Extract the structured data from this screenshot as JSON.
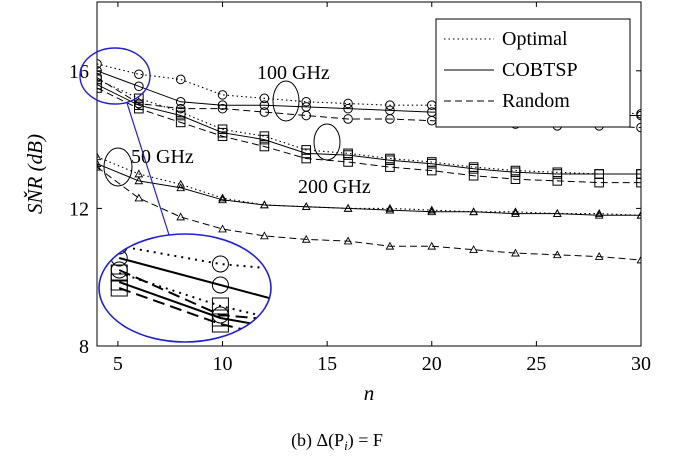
{
  "chart_data": {
    "type": "line",
    "caption": "(b) Δ(P",
    "caption_sub": "i",
    "caption_tail": ") = F",
    "xlabel": "n",
    "ylabel": "SŇR (dB)",
    "xlim": [
      4,
      30
    ],
    "ylim": [
      8,
      18
    ],
    "xticks": [
      5,
      10,
      15,
      20,
      25,
      30
    ],
    "yticks": [
      8,
      12,
      16
    ],
    "grid": false,
    "legend_position": "top-right",
    "legend": [
      {
        "label": "Optimal",
        "dash": "dotted"
      },
      {
        "label": "COBTSP",
        "dash": "solid"
      },
      {
        "label": "Random",
        "dash": "dashed"
      }
    ],
    "annotations": [
      {
        "text": "100 GHz",
        "x": 13.5,
        "y": 16.0
      },
      {
        "text": "50 GHz",
        "x": 6.1,
        "y": 13.4
      },
      {
        "text": "200 GHz",
        "x": 18.7,
        "y": 12.5
      }
    ],
    "series": [
      {
        "group": "100 GHz",
        "style": "dotted",
        "marker": "circle",
        "x": [
          4,
          6,
          8,
          10,
          12,
          14,
          16,
          18,
          20,
          22,
          24,
          26,
          28,
          30
        ],
        "values": [
          16.2,
          15.9,
          15.75,
          15.3,
          15.2,
          15.1,
          15.05,
          15.0,
          15.0,
          14.95,
          14.9,
          14.85,
          14.8,
          14.75
        ]
      },
      {
        "group": "100 GHz",
        "style": "solid",
        "marker": "circle",
        "x": [
          4,
          6,
          8,
          10,
          12,
          14,
          16,
          18,
          20,
          22,
          24,
          26,
          28,
          30
        ],
        "values": [
          16.0,
          15.55,
          15.1,
          15.0,
          15.0,
          14.95,
          14.9,
          14.85,
          14.8,
          14.8,
          14.75,
          14.7,
          14.7,
          14.7
        ]
      },
      {
        "group": "100 GHz",
        "style": "dashed",
        "marker": "circle",
        "x": [
          4,
          6,
          8,
          10,
          12,
          14,
          16,
          18,
          20,
          22,
          24,
          26,
          28,
          30
        ],
        "values": [
          15.8,
          15.05,
          14.9,
          14.9,
          14.8,
          14.7,
          14.6,
          14.6,
          14.55,
          14.5,
          14.45,
          14.4,
          14.4,
          14.35
        ]
      },
      {
        "group": "200 GHz",
        "style": "dotted",
        "marker": "square",
        "x": [
          4,
          6,
          8,
          10,
          12,
          14,
          16,
          18,
          20,
          22,
          24,
          26,
          28,
          30
        ],
        "values": [
          15.75,
          15.2,
          14.8,
          14.3,
          14.1,
          13.7,
          13.6,
          13.45,
          13.35,
          13.2,
          13.1,
          13.05,
          13.0,
          13.0
        ]
      },
      {
        "group": "200 GHz",
        "style": "solid",
        "marker": "square",
        "x": [
          4,
          6,
          8,
          10,
          12,
          14,
          16,
          18,
          20,
          22,
          24,
          26,
          28,
          30
        ],
        "values": [
          15.6,
          15.0,
          14.7,
          14.2,
          14.0,
          13.6,
          13.55,
          13.4,
          13.3,
          13.15,
          13.05,
          13.0,
          13.0,
          13.0
        ]
      },
      {
        "group": "200 GHz",
        "style": "dashed",
        "marker": "square",
        "x": [
          4,
          6,
          8,
          10,
          12,
          14,
          16,
          18,
          20,
          22,
          24,
          26,
          28,
          30
        ],
        "values": [
          15.5,
          14.9,
          14.5,
          14.1,
          13.8,
          13.45,
          13.35,
          13.2,
          13.1,
          12.95,
          12.85,
          12.8,
          12.75,
          12.75
        ]
      },
      {
        "group": "50 GHz",
        "style": "dotted",
        "marker": "triangle",
        "x": [
          4,
          6,
          8,
          10,
          12,
          14,
          16,
          18,
          20,
          22,
          24,
          26,
          28,
          30
        ],
        "values": [
          13.5,
          13.0,
          12.7,
          12.3,
          12.1,
          12.05,
          12.0,
          12.0,
          11.95,
          11.9,
          11.9,
          11.85,
          11.85,
          11.8
        ]
      },
      {
        "group": "50 GHz",
        "style": "solid",
        "marker": "triangle",
        "x": [
          4,
          6,
          8,
          10,
          12,
          14,
          16,
          18,
          20,
          22,
          24,
          26,
          28,
          30
        ],
        "values": [
          13.3,
          12.8,
          12.6,
          12.25,
          12.1,
          12.05,
          12.0,
          11.95,
          11.9,
          11.9,
          11.85,
          11.85,
          11.8,
          11.8
        ]
      },
      {
        "group": "50 GHz",
        "style": "dashed",
        "marker": "triangle",
        "x": [
          4,
          6,
          8,
          10,
          12,
          14,
          16,
          18,
          20,
          22,
          24,
          26,
          28,
          30
        ],
        "values": [
          13.2,
          12.3,
          11.75,
          11.4,
          11.2,
          11.1,
          11.05,
          10.9,
          10.9,
          10.8,
          10.7,
          10.65,
          10.6,
          10.5
        ]
      }
    ]
  }
}
